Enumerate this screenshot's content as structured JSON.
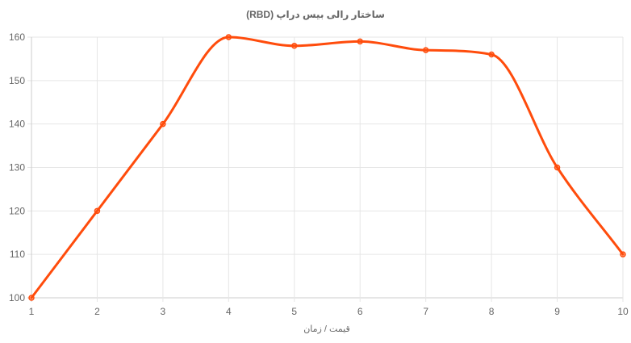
{
  "chart_data": {
    "type": "line",
    "title": "ساختار رالی بیس دراپ (RBD)",
    "xlabel": "قیمت / زمان",
    "ylabel": "",
    "x": [
      1,
      2,
      3,
      4,
      5,
      6,
      7,
      8,
      9,
      10
    ],
    "series": [
      {
        "values": [
          100,
          120,
          140,
          160,
          158,
          159,
          157,
          156,
          130,
          110
        ],
        "color": "#ff4c0c"
      }
    ],
    "xlim": [
      1,
      10
    ],
    "ylim": [
      100,
      160
    ],
    "yticks": [
      100,
      110,
      120,
      130,
      140,
      150,
      160
    ],
    "xticks": [
      1,
      2,
      3,
      4,
      5,
      6,
      7,
      8,
      9,
      10
    ],
    "grid": true,
    "legend": "none",
    "smooth": true
  }
}
